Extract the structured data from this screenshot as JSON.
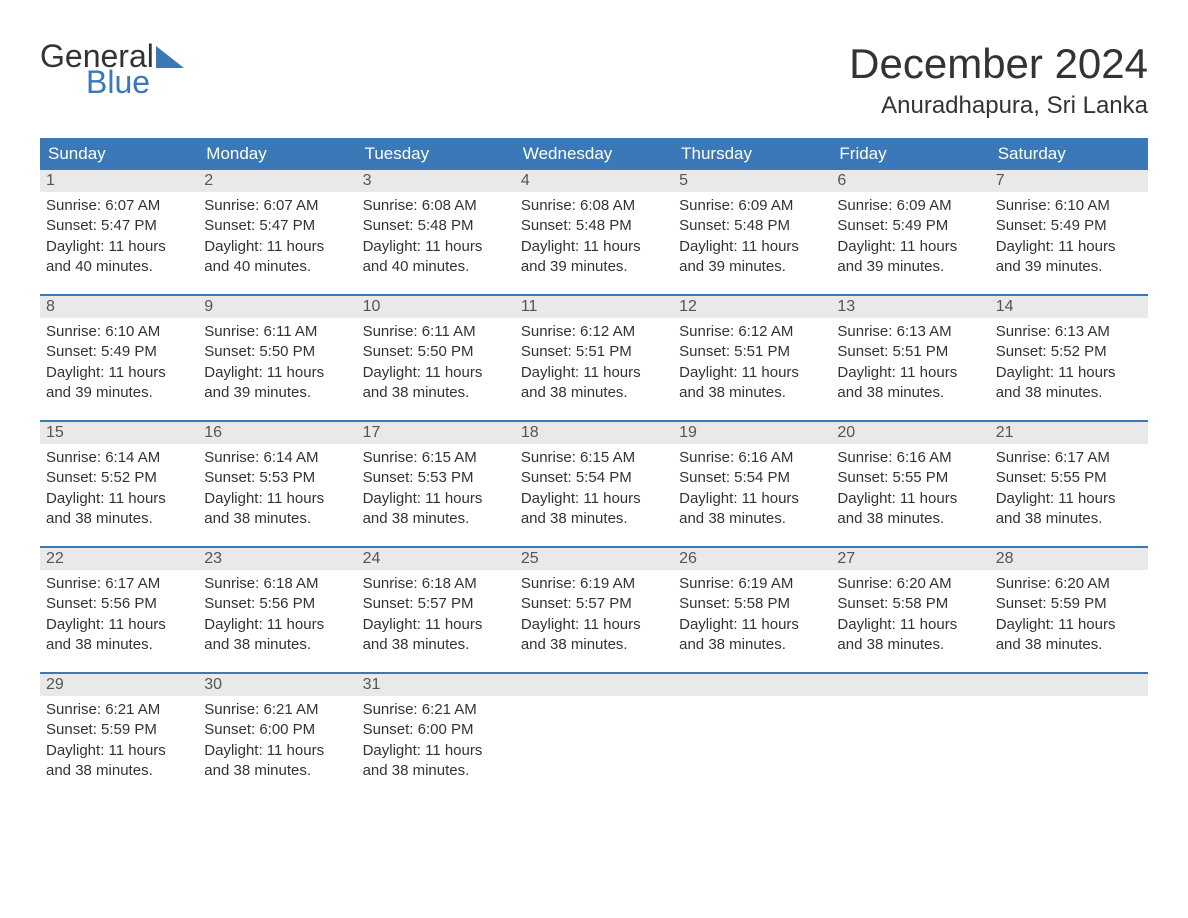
{
  "logo": {
    "word1": "General",
    "word2": "Blue"
  },
  "title": "December 2024",
  "location": "Anuradhapura, Sri Lanka",
  "weekdays": [
    "Sunday",
    "Monday",
    "Tuesday",
    "Wednesday",
    "Thursday",
    "Friday",
    "Saturday"
  ],
  "colors": {
    "brand": "#3a78b8",
    "header_text": "#ffffff",
    "daynum_bg": "#e9e9e9",
    "daynum_fg": "#555555",
    "body_text": "#333333",
    "bg": "#ffffff"
  },
  "fonts": {
    "title_size_pt": 32,
    "location_size_pt": 18,
    "weekday_size_pt": 13,
    "body_size_pt": 11
  },
  "layout": {
    "columns": 7,
    "rows": 5,
    "first_day_column": 0,
    "days_in_month": 31
  },
  "days": [
    {
      "n": 1,
      "sunrise": "6:07 AM",
      "sunset": "5:47 PM",
      "daylight": "11 hours and 40 minutes."
    },
    {
      "n": 2,
      "sunrise": "6:07 AM",
      "sunset": "5:47 PM",
      "daylight": "11 hours and 40 minutes."
    },
    {
      "n": 3,
      "sunrise": "6:08 AM",
      "sunset": "5:48 PM",
      "daylight": "11 hours and 40 minutes."
    },
    {
      "n": 4,
      "sunrise": "6:08 AM",
      "sunset": "5:48 PM",
      "daylight": "11 hours and 39 minutes."
    },
    {
      "n": 5,
      "sunrise": "6:09 AM",
      "sunset": "5:48 PM",
      "daylight": "11 hours and 39 minutes."
    },
    {
      "n": 6,
      "sunrise": "6:09 AM",
      "sunset": "5:49 PM",
      "daylight": "11 hours and 39 minutes."
    },
    {
      "n": 7,
      "sunrise": "6:10 AM",
      "sunset": "5:49 PM",
      "daylight": "11 hours and 39 minutes."
    },
    {
      "n": 8,
      "sunrise": "6:10 AM",
      "sunset": "5:49 PM",
      "daylight": "11 hours and 39 minutes."
    },
    {
      "n": 9,
      "sunrise": "6:11 AM",
      "sunset": "5:50 PM",
      "daylight": "11 hours and 39 minutes."
    },
    {
      "n": 10,
      "sunrise": "6:11 AM",
      "sunset": "5:50 PM",
      "daylight": "11 hours and 38 minutes."
    },
    {
      "n": 11,
      "sunrise": "6:12 AM",
      "sunset": "5:51 PM",
      "daylight": "11 hours and 38 minutes."
    },
    {
      "n": 12,
      "sunrise": "6:12 AM",
      "sunset": "5:51 PM",
      "daylight": "11 hours and 38 minutes."
    },
    {
      "n": 13,
      "sunrise": "6:13 AM",
      "sunset": "5:51 PM",
      "daylight": "11 hours and 38 minutes."
    },
    {
      "n": 14,
      "sunrise": "6:13 AM",
      "sunset": "5:52 PM",
      "daylight": "11 hours and 38 minutes."
    },
    {
      "n": 15,
      "sunrise": "6:14 AM",
      "sunset": "5:52 PM",
      "daylight": "11 hours and 38 minutes."
    },
    {
      "n": 16,
      "sunrise": "6:14 AM",
      "sunset": "5:53 PM",
      "daylight": "11 hours and 38 minutes."
    },
    {
      "n": 17,
      "sunrise": "6:15 AM",
      "sunset": "5:53 PM",
      "daylight": "11 hours and 38 minutes."
    },
    {
      "n": 18,
      "sunrise": "6:15 AM",
      "sunset": "5:54 PM",
      "daylight": "11 hours and 38 minutes."
    },
    {
      "n": 19,
      "sunrise": "6:16 AM",
      "sunset": "5:54 PM",
      "daylight": "11 hours and 38 minutes."
    },
    {
      "n": 20,
      "sunrise": "6:16 AM",
      "sunset": "5:55 PM",
      "daylight": "11 hours and 38 minutes."
    },
    {
      "n": 21,
      "sunrise": "6:17 AM",
      "sunset": "5:55 PM",
      "daylight": "11 hours and 38 minutes."
    },
    {
      "n": 22,
      "sunrise": "6:17 AM",
      "sunset": "5:56 PM",
      "daylight": "11 hours and 38 minutes."
    },
    {
      "n": 23,
      "sunrise": "6:18 AM",
      "sunset": "5:56 PM",
      "daylight": "11 hours and 38 minutes."
    },
    {
      "n": 24,
      "sunrise": "6:18 AM",
      "sunset": "5:57 PM",
      "daylight": "11 hours and 38 minutes."
    },
    {
      "n": 25,
      "sunrise": "6:19 AM",
      "sunset": "5:57 PM",
      "daylight": "11 hours and 38 minutes."
    },
    {
      "n": 26,
      "sunrise": "6:19 AM",
      "sunset": "5:58 PM",
      "daylight": "11 hours and 38 minutes."
    },
    {
      "n": 27,
      "sunrise": "6:20 AM",
      "sunset": "5:58 PM",
      "daylight": "11 hours and 38 minutes."
    },
    {
      "n": 28,
      "sunrise": "6:20 AM",
      "sunset": "5:59 PM",
      "daylight": "11 hours and 38 minutes."
    },
    {
      "n": 29,
      "sunrise": "6:21 AM",
      "sunset": "5:59 PM",
      "daylight": "11 hours and 38 minutes."
    },
    {
      "n": 30,
      "sunrise": "6:21 AM",
      "sunset": "6:00 PM",
      "daylight": "11 hours and 38 minutes."
    },
    {
      "n": 31,
      "sunrise": "6:21 AM",
      "sunset": "6:00 PM",
      "daylight": "11 hours and 38 minutes."
    }
  ],
  "labels": {
    "sunrise": "Sunrise:",
    "sunset": "Sunset:",
    "daylight": "Daylight:"
  }
}
